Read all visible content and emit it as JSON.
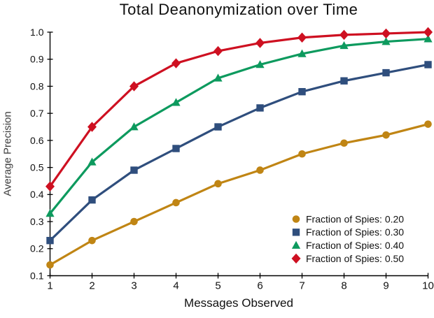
{
  "figure": {
    "background": "#ffffff",
    "axis_color": "#000000",
    "text_color": "#111111"
  },
  "chart_data": {
    "type": "line",
    "title": "Total Deanonymization over Time",
    "xlabel": "Messages Observed",
    "ylabel": "Average Precision",
    "xlim": [
      1,
      10
    ],
    "ylim": [
      0.1,
      1.0
    ],
    "grid": false,
    "legend_position": "lower right",
    "x": [
      1,
      2,
      3,
      4,
      5,
      6,
      7,
      8,
      9,
      10
    ],
    "x_tick_labels": [
      "1",
      "2",
      "3",
      "4",
      "5",
      "6",
      "7",
      "8",
      "9",
      "10"
    ],
    "y_ticks": [
      0.1,
      0.2,
      0.3,
      0.4,
      0.5,
      0.6,
      0.7,
      0.8,
      0.9,
      1.0
    ],
    "y_tick_labels": [
      "0.1",
      "0.2",
      "0.3",
      "0.4",
      "0.5",
      "0.6",
      "0.7",
      "0.8",
      "0.9",
      "1.0"
    ],
    "series": [
      {
        "name": "Fraction of Spies: 0.20",
        "marker": "circle",
        "color": "#C08514",
        "values": [
          0.14,
          0.23,
          0.3,
          0.37,
          0.44,
          0.49,
          0.55,
          0.59,
          0.62,
          0.66
        ]
      },
      {
        "name": "Fraction of Spies: 0.30",
        "marker": "square",
        "color": "#2F4E7D",
        "values": [
          0.23,
          0.38,
          0.49,
          0.57,
          0.65,
          0.72,
          0.78,
          0.82,
          0.85,
          0.88
        ]
      },
      {
        "name": "Fraction of Spies: 0.40",
        "marker": "triangle",
        "color": "#0D9A5E",
        "values": [
          0.33,
          0.52,
          0.65,
          0.74,
          0.83,
          0.88,
          0.92,
          0.95,
          0.965,
          0.975
        ]
      },
      {
        "name": "Fraction of Spies: 0.50",
        "marker": "diamond",
        "color": "#CE1021",
        "values": [
          0.43,
          0.65,
          0.8,
          0.885,
          0.93,
          0.96,
          0.98,
          0.99,
          0.995,
          1.0
        ]
      }
    ]
  }
}
